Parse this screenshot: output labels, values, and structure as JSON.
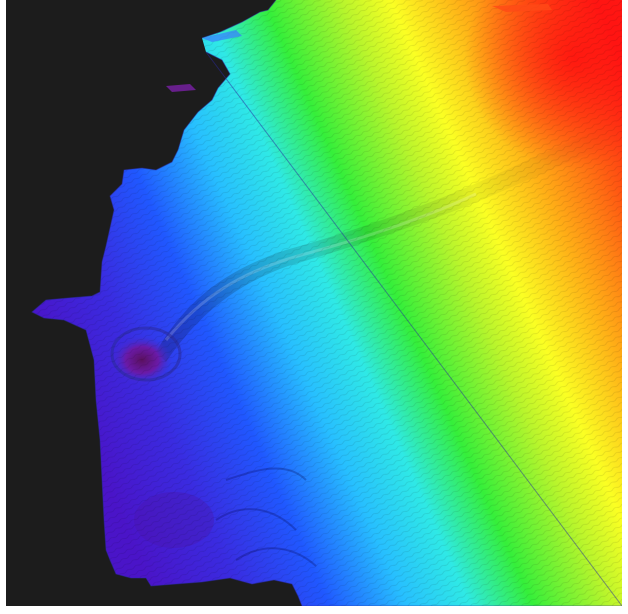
{
  "viewer": {
    "background_color": "#1c1c1c",
    "frame_color": "#ffffff"
  },
  "colormap": {
    "stops": [
      "#3b14d6",
      "#1f6cff",
      "#27e6ff",
      "#2ef02e",
      "#f6ff22",
      "#ff8a12",
      "#ff1a16"
    ]
  },
  "scene": {
    "subject": "3d-bathymetry-surface",
    "features": [
      "canyon-ridge",
      "seafloor-depression",
      "deep-basin",
      "shallow-shelf"
    ]
  }
}
